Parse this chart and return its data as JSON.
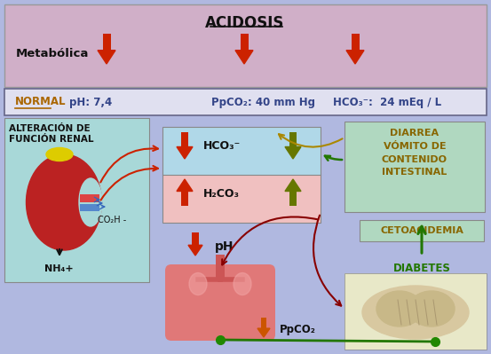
{
  "title": "ACIDOSIS",
  "metabolica_label": "Metabólica",
  "normal_label": "NORMAL",
  "ph_normal": "pH: 7,4",
  "ppco2_normal": "PpCO₂: 40 mm Hg",
  "hco3_normal": "HCO₃⁻:  24 mEq / L",
  "hco3_label": "HCO₃⁻",
  "h2co3_label": "H₂CO₃",
  "ph_label": "pH",
  "ppco2_label": "PpCO₂",
  "alteracion_line1": "ALTERACIÓN DE",
  "alteracion_line2": "FUNCIÓN RENAL",
  "co2h_label": "CO₂H -",
  "nh4_label": "NH₄+",
  "diarrea_label": "DIARREA\nVÓMITO DE\nCONTENIDO\nINTESTINAL",
  "cetoacidemia_label": "CETOACIDEMIA",
  "diabetes_label": "DIABETES",
  "bg_color": "#b0b8e0",
  "top_section_color": "#d0afc8",
  "normal_row_color": "#e0e0f0",
  "cyan_box": "#a8d8d8",
  "blue_box": "#b0d8e8",
  "pink_box": "#f0c0c0",
  "green_box": "#b0d8c0",
  "brain_box": "#e8e8c8",
  "red_arrow": "#cc2200",
  "orange_arrow": "#cc5500",
  "olive_arrow": "#667700",
  "green_arrow": "#227700",
  "dark_red": "#880000",
  "normal_text_color": "#aa6600",
  "info_text_color": "#334488"
}
